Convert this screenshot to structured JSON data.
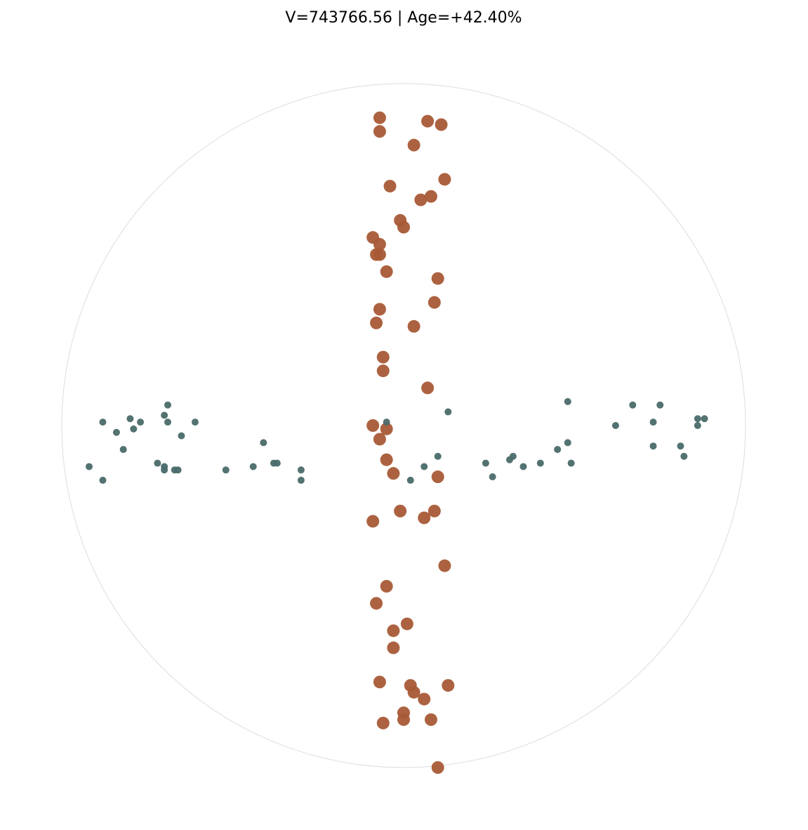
{
  "chart_data": {
    "type": "scatter",
    "title": "V=743766.56 | Age=+42.40%",
    "xlim": [
      -1,
      1
    ],
    "ylim": [
      -1,
      1
    ],
    "series": [
      {
        "color": "#a85a36",
        "x": [
          -0.07,
          0.07,
          0.11,
          -0.07,
          0.03,
          -0.04,
          0.12,
          0.05,
          0.08,
          -0.01,
          0.0,
          -0.09,
          -0.07,
          -0.08,
          -0.07,
          -0.05,
          0.1,
          -0.07,
          0.09,
          -0.08,
          0.03,
          -0.06,
          -0.06,
          0.07,
          -0.09,
          -0.05,
          -0.07,
          -0.05,
          -0.03,
          0.1,
          -0.01,
          0.09,
          -0.09,
          0.06,
          0.12,
          -0.05,
          -0.08,
          0.01,
          -0.03,
          -0.03,
          -0.07,
          0.02,
          0.13,
          0.03,
          0.06,
          0.0,
          0.0,
          0.08,
          -0.06,
          0.1
        ],
        "values": [
          0.9,
          0.89,
          0.88,
          0.86,
          0.82,
          0.7,
          0.72,
          0.66,
          0.67,
          0.6,
          0.58,
          0.55,
          0.53,
          0.5,
          0.5,
          0.45,
          0.43,
          0.34,
          0.36,
          0.3,
          0.29,
          0.2,
          0.16,
          0.11,
          0.0,
          -0.01,
          -0.04,
          -0.1,
          -0.14,
          -0.15,
          -0.25,
          -0.25,
          -0.28,
          -0.27,
          -0.41,
          -0.47,
          -0.52,
          -0.58,
          -0.6,
          -0.65,
          -0.75,
          -0.76,
          -0.76,
          -0.78,
          -0.8,
          -0.84,
          -0.86,
          -0.86,
          -0.87,
          -1.0
        ]
      },
      {
        "color": "#4a6a6a",
        "x": [
          -0.69,
          -0.88,
          -0.8,
          -0.77,
          -0.7,
          -0.69,
          -0.79,
          -0.84,
          -0.61,
          -0.65,
          -0.82,
          -0.41,
          -0.92,
          -0.88,
          -0.72,
          -0.7,
          -0.7,
          -0.66,
          -0.67,
          -0.52,
          -0.44,
          -0.38,
          -0.37,
          -0.3,
          -0.3,
          -0.05,
          0.13,
          0.1,
          0.06,
          0.02,
          0.24,
          0.26,
          0.31,
          0.32,
          0.35,
          0.4,
          0.45,
          0.48,
          0.49,
          0.48,
          0.62,
          0.67,
          0.75,
          0.73,
          0.73,
          0.81,
          0.82,
          0.86,
          0.86,
          0.88
        ],
        "values": [
          0.06,
          0.01,
          0.02,
          0.01,
          0.03,
          0.01,
          -0.01,
          -0.02,
          0.01,
          -0.03,
          -0.07,
          -0.05,
          -0.12,
          -0.16,
          -0.11,
          -0.12,
          -0.13,
          -0.13,
          -0.13,
          -0.13,
          -0.12,
          -0.11,
          -0.11,
          -0.13,
          -0.16,
          0.01,
          0.04,
          -0.09,
          -0.12,
          -0.16,
          -0.11,
          -0.15,
          -0.1,
          -0.09,
          -0.12,
          -0.11,
          -0.07,
          -0.05,
          -0.11,
          0.07,
          0.0,
          0.06,
          0.06,
          0.01,
          -0.06,
          -0.06,
          -0.09,
          0.02,
          0.0,
          0.02
        ]
      }
    ]
  }
}
